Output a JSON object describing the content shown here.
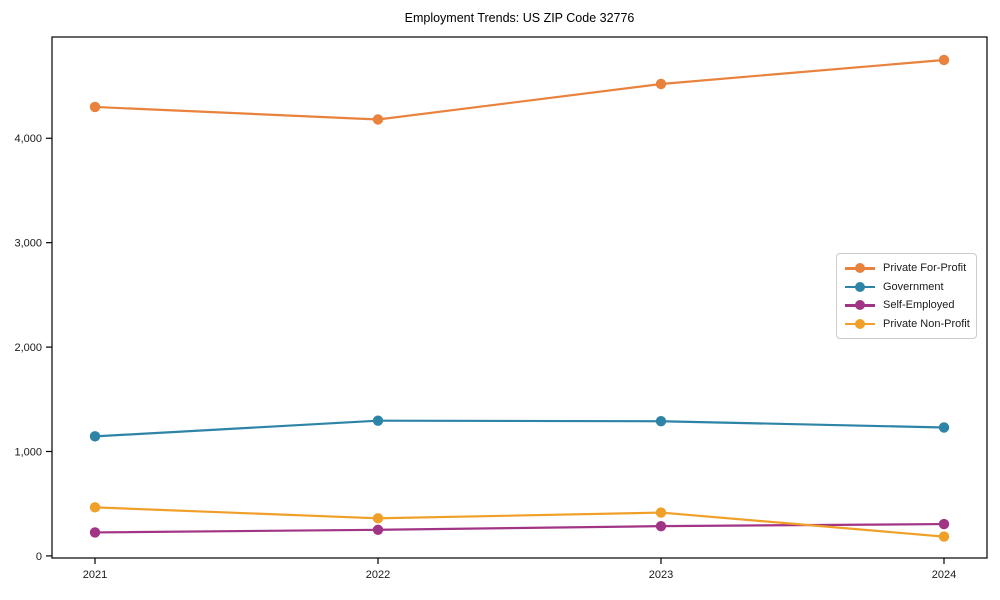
{
  "title": "Employment Trends: US ZIP Code 32776",
  "chart_data": {
    "type": "line",
    "title": "Employment Trends: US ZIP Code 32776",
    "xlabel": "",
    "ylabel": "",
    "x": [
      2021,
      2022,
      2023,
      2024
    ],
    "x_tick_labels": [
      "2021",
      "2022",
      "2023",
      "2024"
    ],
    "y_ticks": [
      0,
      1000,
      2000,
      3000,
      4000
    ],
    "y_tick_labels": [
      "0",
      "1,000",
      "2,000",
      "3,000",
      "4,000"
    ],
    "ylim": [
      -20,
      4970
    ],
    "grid": false,
    "marker": "circle",
    "legend_position": "right-inside",
    "background": "#ffffff",
    "frame_color": "#000000",
    "tick_label_color": "#1a1a1a",
    "series": [
      {
        "name": "Private For-Profit",
        "color": "#e8823c",
        "values": [
          4300,
          4180,
          4520,
          4750
        ]
      },
      {
        "name": "Government",
        "color": "#2d84a6",
        "values": [
          1145,
          1295,
          1290,
          1230
        ]
      },
      {
        "name": "Self-Employed",
        "color": "#a23486",
        "values": [
          225,
          250,
          285,
          305
        ]
      },
      {
        "name": "Private Non-Profit",
        "color": "#f0a028",
        "values": [
          465,
          360,
          415,
          185
        ]
      }
    ]
  }
}
